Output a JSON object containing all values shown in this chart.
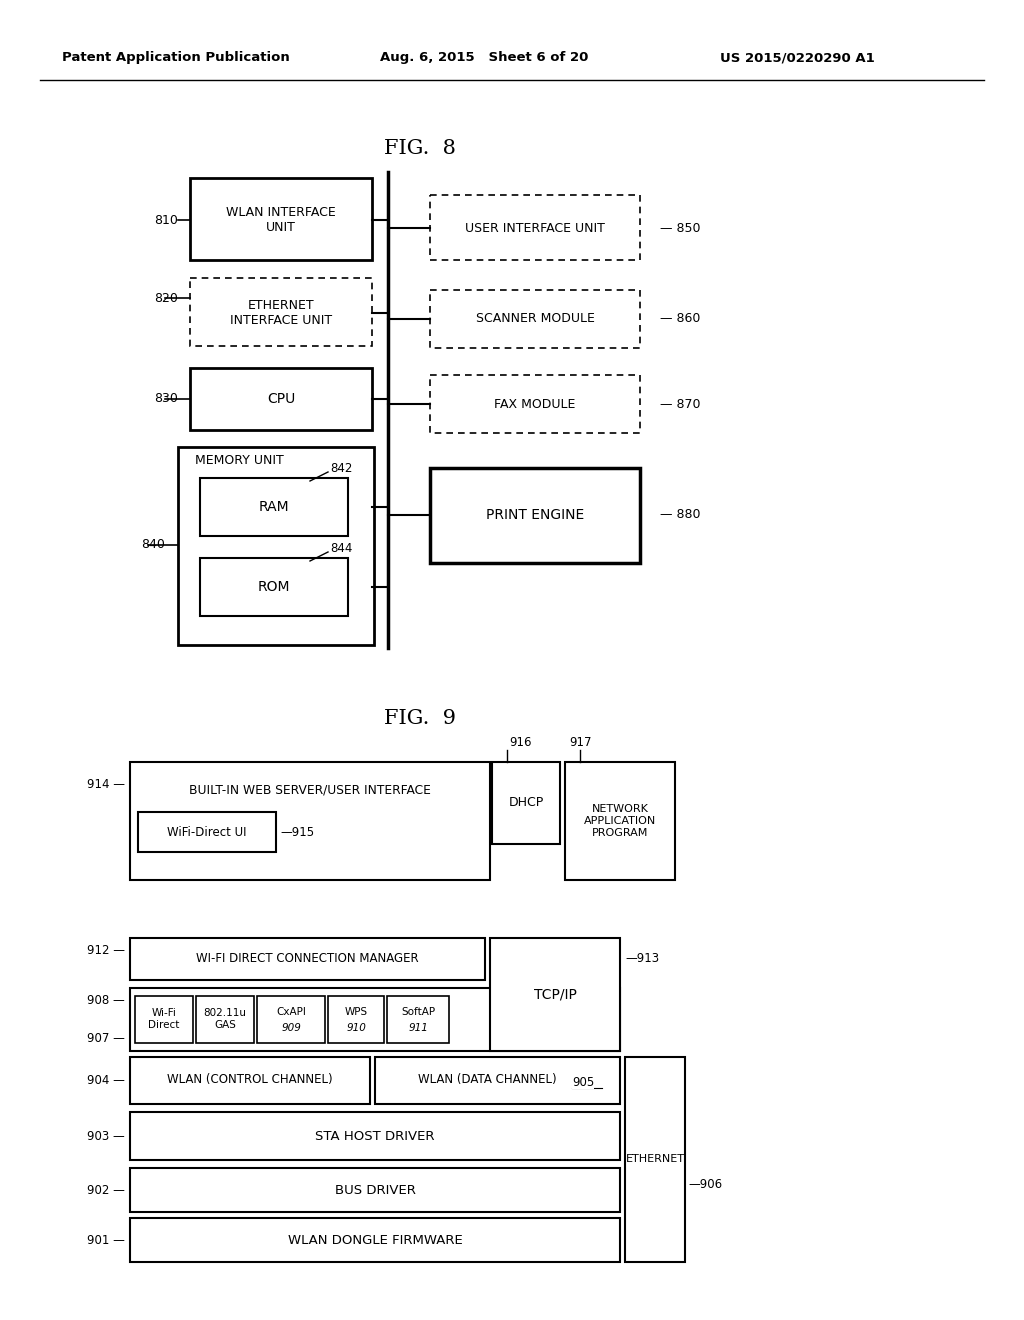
{
  "header_left": "Patent Application Publication",
  "header_mid": "Aug. 6, 2015   Sheet 6 of 20",
  "header_right": "US 2015/0220290 A1",
  "fig8_title": "FIG.  8",
  "fig9_title": "FIG.  9",
  "background": "#ffffff"
}
